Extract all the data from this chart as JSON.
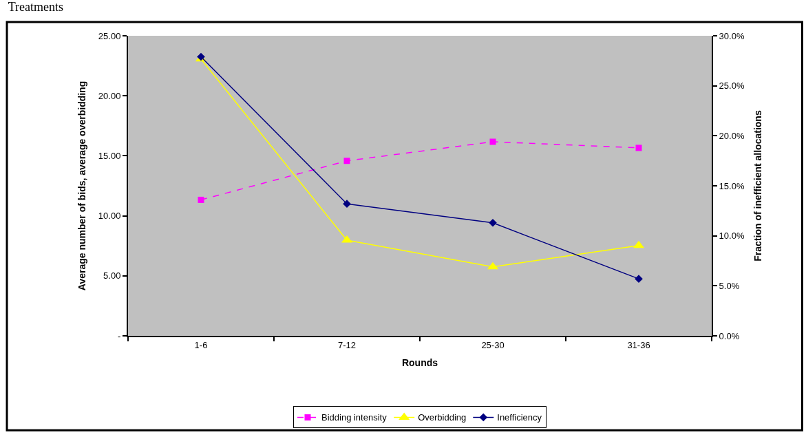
{
  "chart_data": {
    "type": "line",
    "title": "Treatments",
    "xlabel": "Rounds",
    "ylabel": "Average number of bids, average overbidding",
    "y2label": "Fraction of inefficient allocations",
    "categories": [
      "1-6",
      "7-12",
      "25-30",
      "31-36"
    ],
    "series": [
      {
        "name": "Bidding intensity",
        "color": "#ff00ff",
        "values": [
          11.33,
          14.58,
          16.17,
          15.66
        ],
        "marker": "square",
        "line_style": "dashed"
      },
      {
        "name": "Overbidding",
        "color": "#ffff00",
        "values": [
          23.06,
          7.97,
          5.75,
          7.52
        ],
        "marker": "triangle",
        "line_style": "solid"
      },
      {
        "name": "Inefficiency",
        "color": "#000080",
        "values": [
          27.9,
          13.2,
          11.3,
          5.7
        ],
        "marker": "diamond",
        "line_style": "solid",
        "axis": "y2"
      }
    ],
    "ylim": [
      0,
      25
    ],
    "yticks": [
      {
        "value": 0,
        "label": "-"
      },
      {
        "value": 5,
        "label": "5.00"
      },
      {
        "value": 10,
        "label": "10.00"
      },
      {
        "value": 15,
        "label": "15.00"
      },
      {
        "value": 20,
        "label": "20.00"
      },
      {
        "value": 25,
        "label": "25.00"
      }
    ],
    "y2lim": [
      0,
      30
    ],
    "y2ticks": [
      {
        "value": 0,
        "label": "0.0%"
      },
      {
        "value": 5,
        "label": "5.0%"
      },
      {
        "value": 10,
        "label": "10.0%"
      },
      {
        "value": 15,
        "label": "15.0%"
      },
      {
        "value": 20,
        "label": "20.0%"
      },
      {
        "value": 25,
        "label": "25.0%"
      },
      {
        "value": 30,
        "label": "30.0%"
      }
    ],
    "grid": false,
    "legend": "bottom"
  }
}
